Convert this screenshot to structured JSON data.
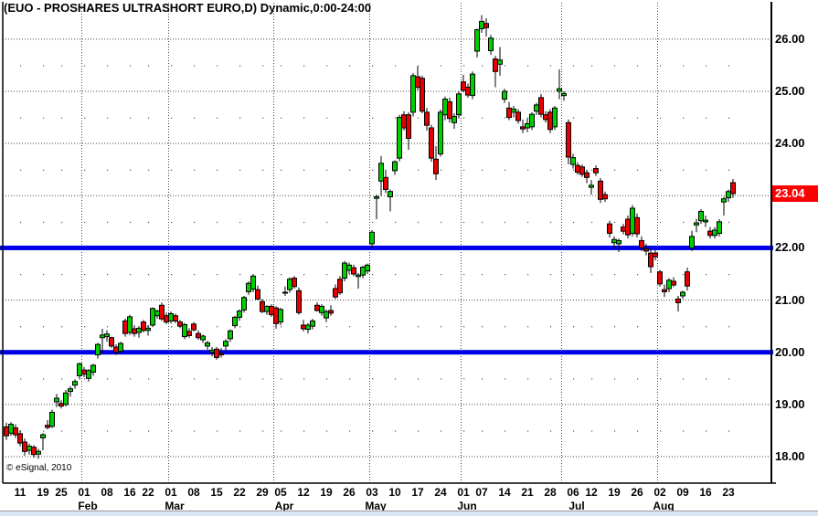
{
  "window": {
    "bottom_strip_color": "#D9E8F8"
  },
  "chart_data": {
    "type": "candlestick",
    "title": "(EUO - PROSHARES ULTRASHORT EURO,D) Dynamic,0:00-24:00",
    "symbol": "EUO",
    "period": "D",
    "session": "0:00-24:00",
    "watermark": "© eSignal, 2010",
    "grid": true,
    "legend_position": "none",
    "y_axis": {
      "min": 18.0,
      "max": 26.5,
      "tick_interval": 1.0,
      "tick_prices": [
        26,
        25,
        24,
        22,
        21,
        20,
        19,
        18
      ],
      "tick_labels": [
        "26.00",
        "25.00",
        "24.00",
        "22.00",
        "21.00",
        "20.00",
        "19.00",
        "18.00"
      ],
      "last_price": 23.04,
      "last_price_label": "23.04",
      "last_price_bg": "#FF0000"
    },
    "x_axis": {
      "week_tick_labels": [
        "11",
        "19",
        "25",
        "01",
        "08",
        "16",
        "22",
        "01",
        "08",
        "15",
        "22",
        "29",
        "05",
        "12",
        "19",
        "26",
        "03",
        "10",
        "17",
        "24",
        "01",
        "07",
        "14",
        "21",
        "28",
        "06",
        "12",
        "19",
        "26",
        "02",
        "09",
        "16",
        "23"
      ],
      "week_tick_indices": [
        3,
        8,
        12,
        17,
        22,
        27,
        31,
        36,
        41,
        46,
        51,
        56,
        60,
        65,
        70,
        75,
        80,
        85,
        90,
        95,
        100,
        104,
        109,
        114,
        119,
        124,
        128,
        133,
        138,
        143,
        148,
        153,
        158
      ],
      "month_labels": [
        "Feb",
        "Mar",
        "Apr",
        "May",
        "Jun",
        "Jul",
        "Aug"
      ],
      "month_label_indices": [
        17,
        36,
        60,
        80,
        100,
        124,
        143
      ],
      "month_gridline_indices": [
        17,
        36,
        59,
        80,
        100,
        122,
        143
      ]
    },
    "horizontal_lines": [
      {
        "price": 22.0,
        "color": "#0000E8"
      },
      {
        "price": 20.0,
        "color": "#0000E8"
      }
    ],
    "colors": {
      "up": "#00CE00",
      "down": "#E80000",
      "wick": "#000000",
      "grid": "#444444",
      "dot": "#555555"
    },
    "candles_ohlc": [
      [
        18.57,
        18.65,
        18.32,
        18.4
      ],
      [
        18.45,
        18.66,
        18.4,
        18.62
      ],
      [
        18.55,
        18.62,
        18.36,
        18.42
      ],
      [
        18.44,
        18.5,
        18.2,
        18.26
      ],
      [
        18.28,
        18.35,
        18.02,
        18.1
      ],
      [
        18.12,
        18.25,
        18.04,
        18.2
      ],
      [
        18.18,
        18.22,
        17.98,
        18.04
      ],
      [
        18.05,
        18.15,
        17.96,
        18.1
      ],
      [
        18.36,
        18.45,
        18.12,
        18.42
      ],
      [
        18.6,
        18.7,
        18.52,
        18.56
      ],
      [
        18.58,
        18.9,
        18.55,
        18.85
      ],
      [
        19.05,
        19.2,
        18.95,
        19.12
      ],
      [
        19.02,
        19.08,
        18.92,
        18.97
      ],
      [
        19.0,
        19.28,
        18.96,
        19.22
      ],
      [
        19.25,
        19.35,
        19.15,
        19.3
      ],
      [
        19.37,
        19.48,
        19.3,
        19.44
      ],
      [
        19.55,
        19.8,
        19.48,
        19.78
      ],
      [
        19.66,
        19.72,
        19.52,
        19.58
      ],
      [
        19.5,
        19.68,
        19.44,
        19.65
      ],
      [
        19.62,
        19.78,
        19.55,
        19.75
      ],
      [
        19.95,
        20.18,
        19.88,
        20.15
      ],
      [
        20.28,
        20.45,
        19.98,
        20.33
      ],
      [
        20.3,
        20.42,
        20.2,
        20.35
      ],
      [
        20.28,
        20.3,
        20.08,
        20.12
      ],
      [
        20.1,
        20.15,
        19.95,
        20.0
      ],
      [
        20.02,
        20.2,
        19.98,
        20.17
      ],
      [
        20.6,
        20.65,
        20.3,
        20.36
      ],
      [
        20.38,
        20.72,
        20.33,
        20.68
      ],
      [
        20.45,
        20.52,
        20.3,
        20.36
      ],
      [
        20.38,
        20.5,
        20.28,
        20.46
      ],
      [
        20.58,
        20.62,
        20.38,
        20.42
      ],
      [
        20.42,
        20.52,
        20.32,
        20.46
      ],
      [
        20.52,
        20.86,
        20.48,
        20.84
      ],
      [
        20.7,
        20.82,
        20.64,
        20.79
      ],
      [
        20.9,
        20.95,
        20.6,
        20.64
      ],
      [
        20.7,
        20.76,
        20.54,
        20.58
      ],
      [
        20.6,
        20.78,
        20.55,
        20.74
      ],
      [
        20.7,
        20.74,
        20.56,
        20.6
      ],
      [
        20.58,
        20.62,
        20.46,
        20.5
      ],
      [
        20.3,
        20.56,
        20.25,
        20.53
      ],
      [
        20.4,
        20.46,
        20.28,
        20.32
      ],
      [
        20.54,
        20.58,
        20.4,
        20.43
      ],
      [
        20.36,
        20.42,
        20.24,
        20.28
      ],
      [
        20.24,
        20.34,
        20.18,
        20.31
      ],
      [
        20.12,
        20.22,
        20.05,
        20.18
      ],
      [
        20.0,
        20.1,
        19.92,
        20.04
      ],
      [
        20.06,
        20.1,
        19.86,
        19.9
      ],
      [
        19.98,
        20.08,
        19.9,
        19.95
      ],
      [
        20.12,
        20.25,
        20.02,
        20.21
      ],
      [
        20.26,
        20.44,
        20.2,
        20.41
      ],
      [
        20.51,
        20.7,
        20.46,
        20.67
      ],
      [
        20.67,
        20.82,
        20.6,
        20.79
      ],
      [
        20.81,
        21.08,
        20.76,
        21.05
      ],
      [
        21.16,
        21.36,
        21.1,
        21.32
      ],
      [
        21.21,
        21.5,
        21.15,
        21.46
      ],
      [
        21.2,
        21.28,
        21.0,
        21.02
      ],
      [
        20.97,
        21.02,
        20.75,
        20.78
      ],
      [
        20.78,
        20.9,
        20.72,
        20.88
      ],
      [
        20.88,
        20.92,
        20.68,
        20.72
      ],
      [
        20.85,
        20.88,
        20.45,
        20.55
      ],
      [
        20.58,
        20.85,
        20.52,
        20.82
      ],
      [
        21.15,
        21.26,
        21.08,
        21.14
      ],
      [
        21.2,
        21.44,
        21.14,
        21.4
      ],
      [
        21.42,
        21.46,
        21.22,
        21.26
      ],
      [
        21.18,
        21.24,
        20.72,
        20.76
      ],
      [
        20.52,
        20.62,
        20.4,
        20.45
      ],
      [
        20.44,
        20.56,
        20.36,
        20.52
      ],
      [
        20.5,
        20.64,
        20.44,
        20.6
      ],
      [
        20.9,
        20.96,
        20.78,
        20.8
      ],
      [
        20.76,
        20.92,
        20.7,
        20.88
      ],
      [
        20.66,
        20.82,
        20.58,
        20.78
      ],
      [
        20.8,
        20.9,
        20.7,
        20.75
      ],
      [
        21.22,
        21.3,
        21.02,
        21.06
      ],
      [
        21.4,
        21.46,
        21.1,
        21.14
      ],
      [
        21.42,
        21.75,
        21.36,
        21.71
      ],
      [
        21.57,
        21.72,
        21.5,
        21.67
      ],
      [
        21.62,
        21.68,
        21.46,
        21.5
      ],
      [
        21.45,
        21.52,
        21.22,
        21.48
      ],
      [
        21.48,
        21.66,
        21.42,
        21.63
      ],
      [
        21.56,
        21.7,
        21.5,
        21.67
      ],
      [
        22.08,
        22.34,
        22.0,
        22.3
      ],
      [
        22.95,
        23.02,
        22.55,
        22.98
      ],
      [
        23.28,
        23.76,
        23.0,
        23.62
      ],
      [
        23.35,
        23.5,
        23.05,
        23.12
      ],
      [
        22.98,
        23.12,
        22.7,
        23.08
      ],
      [
        23.48,
        23.68,
        23.4,
        23.65
      ],
      [
        23.72,
        24.55,
        23.66,
        24.5
      ],
      [
        24.55,
        24.62,
        24.25,
        24.3
      ],
      [
        24.55,
        24.6,
        23.88,
        24.1
      ],
      [
        24.6,
        25.35,
        24.52,
        25.3
      ],
      [
        25.28,
        25.48,
        25.02,
        25.08
      ],
      [
        25.25,
        25.3,
        24.58,
        24.62
      ],
      [
        24.6,
        24.68,
        24.25,
        24.35
      ],
      [
        24.3,
        24.36,
        23.65,
        23.72
      ],
      [
        23.7,
        23.95,
        23.3,
        23.42
      ],
      [
        23.8,
        24.65,
        23.75,
        24.6
      ],
      [
        24.55,
        24.9,
        24.45,
        24.85
      ],
      [
        24.8,
        24.88,
        24.4,
        24.48
      ],
      [
        24.4,
        24.58,
        24.28,
        24.52
      ],
      [
        24.55,
        25.0,
        24.48,
        24.95
      ],
      [
        25.18,
        25.32,
        24.98,
        25.02
      ],
      [
        25.08,
        25.15,
        24.88,
        24.93
      ],
      [
        24.92,
        25.38,
        24.85,
        25.33
      ],
      [
        25.77,
        26.2,
        25.65,
        26.18
      ],
      [
        26.2,
        26.46,
        26.12,
        26.34
      ],
      [
        26.3,
        26.4,
        26.05,
        26.22
      ],
      [
        25.78,
        26.08,
        25.7,
        26.02
      ],
      [
        25.62,
        25.68,
        25.08,
        25.38
      ],
      [
        25.52,
        25.85,
        25.3,
        25.6
      ],
      [
        24.85,
        25.05,
        24.78,
        25.0
      ],
      [
        24.68,
        24.8,
        24.45,
        24.5
      ],
      [
        24.6,
        24.72,
        24.5,
        24.66
      ],
      [
        24.6,
        24.66,
        24.38,
        24.44
      ],
      [
        24.32,
        24.46,
        24.2,
        24.28
      ],
      [
        24.3,
        24.48,
        24.22,
        24.38
      ],
      [
        24.32,
        24.6,
        24.26,
        24.56
      ],
      [
        24.62,
        24.78,
        24.55,
        24.74
      ],
      [
        24.88,
        24.95,
        24.5,
        24.56
      ],
      [
        24.55,
        24.62,
        24.4,
        24.46
      ],
      [
        24.6,
        24.66,
        24.2,
        24.27
      ],
      [
        24.32,
        24.72,
        24.26,
        24.68
      ],
      [
        25.0,
        25.42,
        24.85,
        25.05
      ],
      [
        24.92,
        25.0,
        24.82,
        24.96
      ],
      [
        24.4,
        24.46,
        23.6,
        23.74
      ],
      [
        23.6,
        23.8,
        23.52,
        23.73
      ],
      [
        23.58,
        23.64,
        23.4,
        23.45
      ],
      [
        23.55,
        23.6,
        23.36,
        23.41
      ],
      [
        23.44,
        23.5,
        23.24,
        23.35
      ],
      [
        23.16,
        23.3,
        23.02,
        23.2
      ],
      [
        23.52,
        23.58,
        23.38,
        23.44
      ],
      [
        23.28,
        23.34,
        22.86,
        22.93
      ],
      [
        23.02,
        23.08,
        22.88,
        22.94
      ],
      [
        22.46,
        22.52,
        22.2,
        22.28
      ],
      [
        22.1,
        22.22,
        22.0,
        22.16
      ],
      [
        22.08,
        22.18,
        21.92,
        22.14
      ],
      [
        22.4,
        22.46,
        22.26,
        22.32
      ],
      [
        22.55,
        22.62,
        22.18,
        22.25
      ],
      [
        22.28,
        22.82,
        22.22,
        22.76
      ],
      [
        22.58,
        22.66,
        22.2,
        22.27
      ],
      [
        22.14,
        22.22,
        21.94,
        22.0
      ],
      [
        21.98,
        22.08,
        21.86,
        21.94
      ],
      [
        21.9,
        21.96,
        21.52,
        21.64
      ],
      [
        21.9,
        21.96,
        21.76,
        21.83
      ],
      [
        21.54,
        21.58,
        21.26,
        21.31
      ],
      [
        21.2,
        21.3,
        21.06,
        21.16
      ],
      [
        21.22,
        21.42,
        21.15,
        21.38
      ],
      [
        21.36,
        21.44,
        21.25,
        21.29
      ],
      [
        21.02,
        21.08,
        20.78,
        20.95
      ],
      [
        21.08,
        21.18,
        21.02,
        21.15
      ],
      [
        21.54,
        21.62,
        21.18,
        21.27
      ],
      [
        22.0,
        22.33,
        21.94,
        22.22
      ],
      [
        22.44,
        22.56,
        22.3,
        22.48
      ],
      [
        22.52,
        22.74,
        22.46,
        22.7
      ],
      [
        22.5,
        22.62,
        22.4,
        22.53
      ],
      [
        22.32,
        22.4,
        22.18,
        22.24
      ],
      [
        22.24,
        22.4,
        22.18,
        22.34
      ],
      [
        22.28,
        22.55,
        22.22,
        22.5
      ],
      [
        22.88,
        22.98,
        22.62,
        22.94
      ],
      [
        22.96,
        23.12,
        22.88,
        23.08
      ],
      [
        23.25,
        23.32,
        22.96,
        23.04
      ]
    ]
  }
}
